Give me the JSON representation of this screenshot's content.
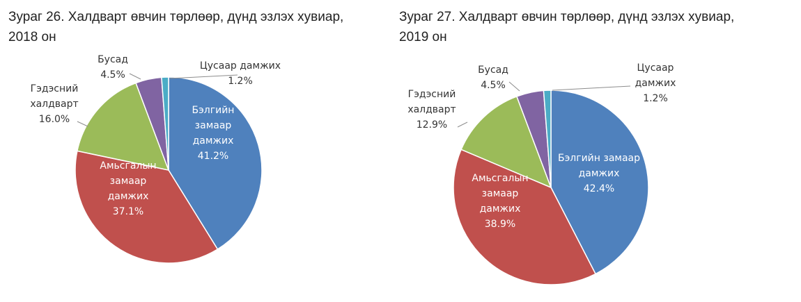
{
  "chart_data": [
    {
      "type": "pie",
      "title": "Зураг 26. Халдварт өвчин төрлөөр, дүнд эзлэх хувиар, 2018 он",
      "title_lines": [
        "Зураг 26. Халдварт өвчин төрлөөр, дүнд эзлэх хувиар,",
        "2018 он"
      ],
      "slices": [
        {
          "label_lines": [
            "Бэлгийн",
            "замаар",
            "дамжих"
          ],
          "value_text": "41.2%",
          "value": 41.2,
          "color": "#4f81bd"
        },
        {
          "label_lines": [
            "Амьсгалын",
            "замаар",
            "дамжих"
          ],
          "value_text": "37.1%",
          "value": 37.1,
          "color": "#c0504d"
        },
        {
          "label_lines": [
            "Гэдэсний",
            "халдварт"
          ],
          "value_text": "16.0%",
          "value": 16.0,
          "color": "#9bbb59"
        },
        {
          "label_lines": [
            "Бусад"
          ],
          "value_text": "4.5%",
          "value": 4.5,
          "color": "#8064a2"
        },
        {
          "label_lines": [
            "Цусаар дамжих"
          ],
          "value_text": "1.2%",
          "value": 1.2,
          "color": "#4bacc6"
        }
      ]
    },
    {
      "type": "pie",
      "title": "Зураг 27. Халдварт өвчин төрлөөр, дүнд эзлэх хувиар, 2019 он",
      "title_lines": [
        "Зураг 27. Халдварт өвчин төрлөөр, дүнд эзлэх хувиар,",
        "2019 он"
      ],
      "slices": [
        {
          "label_lines": [
            "Бэлгийн замаар",
            "дамжих"
          ],
          "value_text": "42.4%",
          "value": 42.4,
          "color": "#4f81bd"
        },
        {
          "label_lines": [
            "Амьсгалын",
            "замаар",
            "дамжих"
          ],
          "value_text": "38.9%",
          "value": 38.9,
          "color": "#c0504d"
        },
        {
          "label_lines": [
            "Гэдэсний",
            "халдварт"
          ],
          "value_text": "12.9%",
          "value": 12.9,
          "color": "#9bbb59"
        },
        {
          "label_lines": [
            "Бусад"
          ],
          "value_text": "4.5%",
          "value": 4.5,
          "color": "#8064a2"
        },
        {
          "label_lines": [
            "Цусаар",
            "дамжих"
          ],
          "value_text": "1.2%",
          "value": 1.2,
          "color": "#4bacc6"
        }
      ]
    }
  ]
}
